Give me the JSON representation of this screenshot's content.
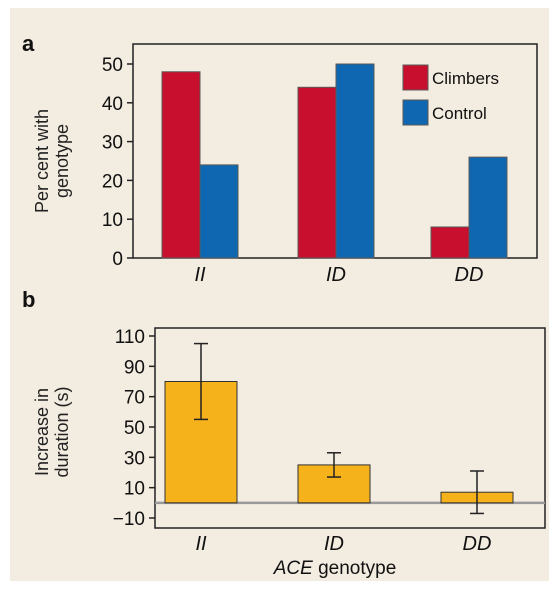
{
  "chart_data": [
    {
      "panel": "a",
      "type": "bar",
      "categories": [
        "II",
        "ID",
        "DD"
      ],
      "series": [
        {
          "name": "Climbers",
          "values": [
            48,
            44,
            8
          ],
          "color": "#c8102e"
        },
        {
          "name": "Control",
          "values": [
            24,
            50,
            26
          ],
          "color": "#0f67b1"
        }
      ],
      "ylabel_lines": [
        "Per cent with",
        "genotype"
      ],
      "ylim": [
        0,
        50
      ],
      "yticks": [
        0,
        10,
        20,
        30,
        40,
        50
      ],
      "grid": false,
      "legend": "top-right"
    },
    {
      "panel": "b",
      "type": "bar",
      "categories": [
        "II",
        "ID",
        "DD"
      ],
      "values": [
        80,
        25,
        7
      ],
      "errors": [
        [
          55,
          105
        ],
        [
          17,
          33
        ],
        [
          -7,
          21
        ]
      ],
      "color": "#f6b21b",
      "ylabel_lines": [
        "Increase in",
        "duration (s)"
      ],
      "xlabel_italic": "ACE",
      "xlabel_rest": " genotype",
      "ylim": [
        -10,
        110
      ],
      "yticks": [
        110,
        90,
        70,
        50,
        30,
        10,
        -10
      ],
      "grid": false
    }
  ]
}
